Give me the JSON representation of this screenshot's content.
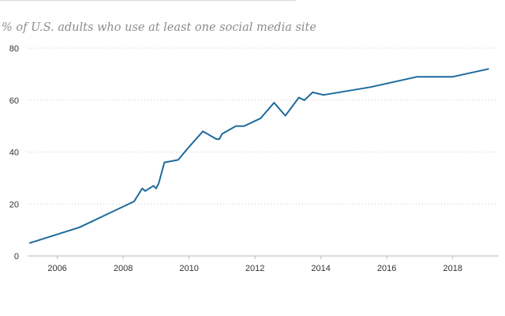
{
  "chart_data": {
    "type": "line",
    "title": "% of U.S. adults who use at least one social media site",
    "xlabel": "",
    "ylabel": "",
    "xlim": [
      2005.1,
      2019.3
    ],
    "ylim": [
      0,
      80
    ],
    "grid": true,
    "x_ticks": [
      {
        "value": 2006,
        "label": "2006"
      },
      {
        "value": 2008,
        "label": "2008"
      },
      {
        "value": 2010,
        "label": "2010"
      },
      {
        "value": 2012,
        "label": "2012"
      },
      {
        "value": 2014,
        "label": "2014"
      },
      {
        "value": 2016,
        "label": "2016"
      },
      {
        "value": 2018,
        "label": "2018"
      }
    ],
    "y_ticks": [
      {
        "value": 0,
        "label": "0"
      },
      {
        "value": 20,
        "label": "20"
      },
      {
        "value": 40,
        "label": "40"
      },
      {
        "value": 60,
        "label": "60"
      },
      {
        "value": 80,
        "label": "80"
      }
    ],
    "series": [
      {
        "color": "#1d6a9c",
        "points": [
          {
            "x": 2005.17,
            "y": 5
          },
          {
            "x": 2006.67,
            "y": 11
          },
          {
            "x": 2008.33,
            "y": 21
          },
          {
            "x": 2008.58,
            "y": 26
          },
          {
            "x": 2008.67,
            "y": 25
          },
          {
            "x": 2008.92,
            "y": 27
          },
          {
            "x": 2009.0,
            "y": 26
          },
          {
            "x": 2009.08,
            "y": 28
          },
          {
            "x": 2009.25,
            "y": 36
          },
          {
            "x": 2009.67,
            "y": 37
          },
          {
            "x": 2010.0,
            "y": 42
          },
          {
            "x": 2010.42,
            "y": 48
          },
          {
            "x": 2010.83,
            "y": 45
          },
          {
            "x": 2010.92,
            "y": 45
          },
          {
            "x": 2011.0,
            "y": 47
          },
          {
            "x": 2011.42,
            "y": 50
          },
          {
            "x": 2011.67,
            "y": 50
          },
          {
            "x": 2012.17,
            "y": 53
          },
          {
            "x": 2012.58,
            "y": 59
          },
          {
            "x": 2012.92,
            "y": 54
          },
          {
            "x": 2013.33,
            "y": 61
          },
          {
            "x": 2013.5,
            "y": 60
          },
          {
            "x": 2013.75,
            "y": 63
          },
          {
            "x": 2014.08,
            "y": 62
          },
          {
            "x": 2015.5,
            "y": 65
          },
          {
            "x": 2016.92,
            "y": 69
          },
          {
            "x": 2018.0,
            "y": 69
          },
          {
            "x": 2019.08,
            "y": 72
          }
        ]
      }
    ]
  }
}
